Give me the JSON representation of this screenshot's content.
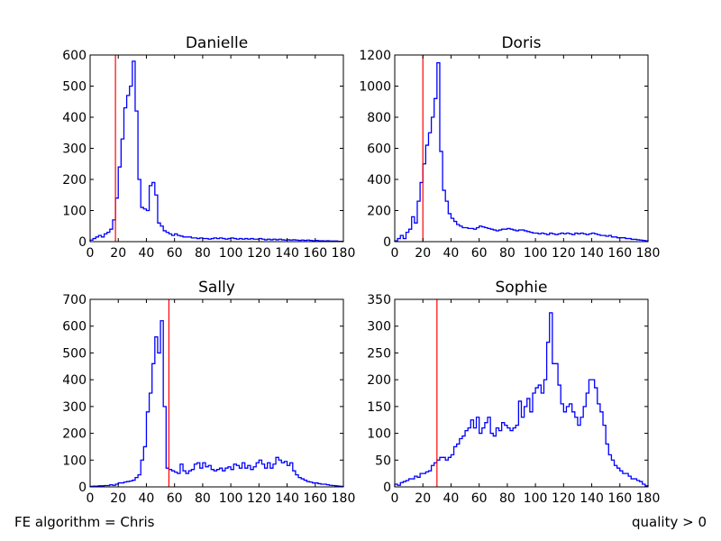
{
  "footer": {
    "left": "FE algorithm = Chris",
    "right": "quality > 0"
  },
  "colors": {
    "histogram": "#0000ff",
    "threshold": "#ff0000",
    "axes": "#000000"
  },
  "chart_data": [
    {
      "type": "histogram-step",
      "title": "Danielle",
      "xlim": [
        0,
        180
      ],
      "ylim": [
        0,
        600
      ],
      "xticks": [
        0,
        20,
        40,
        60,
        80,
        100,
        120,
        140,
        160,
        180
      ],
      "yticks": [
        0,
        100,
        200,
        300,
        400,
        500,
        600
      ],
      "bin_width": 2,
      "threshold": 18,
      "values": [
        5,
        10,
        15,
        20,
        15,
        25,
        30,
        40,
        70,
        140,
        240,
        330,
        430,
        470,
        500,
        580,
        420,
        200,
        110,
        105,
        100,
        180,
        190,
        150,
        60,
        50,
        35,
        30,
        25,
        20,
        25,
        20,
        18,
        15,
        15,
        15,
        12,
        12,
        10,
        12,
        10,
        10,
        8,
        10,
        12,
        10,
        12,
        10,
        8,
        10,
        12,
        10,
        8,
        10,
        8,
        10,
        8,
        10,
        8,
        8,
        10,
        8,
        6,
        8,
        6,
        8,
        6,
        8,
        6,
        5,
        6,
        5,
        6,
        5,
        4,
        5,
        4,
        5,
        4,
        3,
        4,
        3,
        3,
        2,
        3,
        2,
        2,
        2,
        1,
        1
      ]
    },
    {
      "type": "histogram-step",
      "title": "Doris",
      "xlim": [
        0,
        180
      ],
      "ylim": [
        0,
        1200
      ],
      "xticks": [
        0,
        20,
        40,
        60,
        80,
        100,
        120,
        140,
        160,
        180
      ],
      "yticks": [
        0,
        200,
        400,
        600,
        800,
        1000,
        1200
      ],
      "bin_width": 2,
      "threshold": 20,
      "values": [
        5,
        20,
        40,
        20,
        60,
        80,
        160,
        120,
        260,
        380,
        500,
        620,
        700,
        800,
        920,
        1150,
        580,
        330,
        260,
        180,
        150,
        130,
        110,
        100,
        90,
        90,
        85,
        85,
        80,
        90,
        100,
        95,
        90,
        85,
        80,
        75,
        70,
        75,
        80,
        80,
        85,
        80,
        75,
        70,
        75,
        75,
        70,
        65,
        60,
        55,
        55,
        50,
        55,
        50,
        45,
        55,
        50,
        45,
        50,
        55,
        50,
        55,
        50,
        45,
        55,
        50,
        55,
        50,
        45,
        50,
        55,
        50,
        45,
        40,
        40,
        35,
        40,
        30,
        30,
        25,
        25,
        25,
        20,
        20,
        15,
        15,
        12,
        10,
        8,
        5
      ]
    },
    {
      "type": "histogram-step",
      "title": "Sally",
      "xlim": [
        0,
        180
      ],
      "ylim": [
        0,
        700
      ],
      "xticks": [
        0,
        20,
        40,
        60,
        80,
        100,
        120,
        140,
        160,
        180
      ],
      "yticks": [
        0,
        100,
        200,
        300,
        400,
        500,
        600,
        700
      ],
      "bin_width": 2,
      "threshold": 56,
      "values": [
        2,
        3,
        3,
        4,
        4,
        5,
        5,
        8,
        6,
        10,
        15,
        15,
        18,
        20,
        22,
        25,
        35,
        45,
        100,
        150,
        280,
        350,
        460,
        560,
        500,
        620,
        300,
        70,
        65,
        60,
        55,
        50,
        85,
        60,
        50,
        60,
        65,
        85,
        90,
        70,
        90,
        75,
        80,
        65,
        60,
        65,
        70,
        60,
        70,
        75,
        65,
        85,
        80,
        70,
        90,
        70,
        80,
        65,
        75,
        90,
        100,
        85,
        70,
        90,
        70,
        85,
        110,
        100,
        90,
        95,
        80,
        90,
        60,
        45,
        35,
        30,
        25,
        20,
        18,
        15,
        15,
        12,
        10,
        10,
        8,
        6,
        5,
        4,
        3,
        2
      ]
    },
    {
      "type": "histogram-step",
      "title": "Sophie",
      "xlim": [
        0,
        180
      ],
      "ylim": [
        0,
        350
      ],
      "xticks": [
        0,
        20,
        40,
        60,
        80,
        100,
        120,
        140,
        160,
        180
      ],
      "yticks": [
        0,
        50,
        100,
        150,
        200,
        250,
        300,
        350
      ],
      "bin_width": 2,
      "threshold": 30,
      "values": [
        5,
        3,
        8,
        10,
        12,
        15,
        15,
        20,
        18,
        25,
        25,
        28,
        30,
        40,
        45,
        50,
        55,
        55,
        50,
        55,
        60,
        75,
        80,
        90,
        95,
        105,
        110,
        125,
        110,
        130,
        100,
        110,
        120,
        130,
        100,
        95,
        110,
        105,
        120,
        115,
        110,
        105,
        110,
        115,
        160,
        130,
        150,
        165,
        140,
        175,
        185,
        190,
        175,
        200,
        270,
        325,
        230,
        230,
        190,
        155,
        140,
        150,
        155,
        140,
        130,
        115,
        130,
        150,
        175,
        200,
        200,
        185,
        155,
        140,
        115,
        80,
        60,
        50,
        40,
        35,
        30,
        25,
        25,
        20,
        15,
        15,
        12,
        10,
        5,
        2
      ]
    }
  ]
}
